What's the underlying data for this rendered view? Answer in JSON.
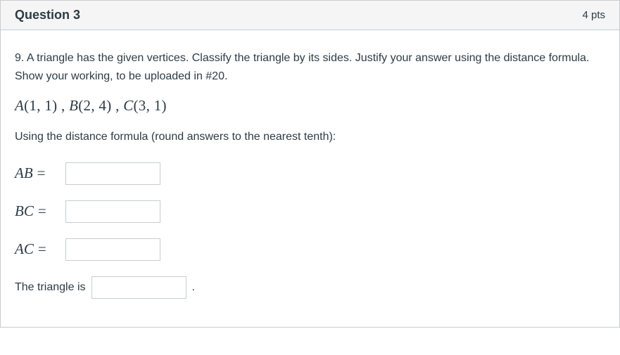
{
  "header": {
    "title": "Question 3",
    "points": "4 pts"
  },
  "body": {
    "prompt_line1": "9. A triangle has the given vertices. Classify the triangle by its sides. Justify your answer using the distance formula.",
    "prompt_line2": "Show your working, to be uploaded in #20.",
    "vertices": {
      "A_label": "A",
      "A_coords": "(1, 1)",
      "B_label": "B",
      "B_coords": "(2, 4)",
      "C_label": "C",
      "C_coords": "(3, 1)"
    },
    "hint": "Using the distance formula (round answers to the nearest tenth):",
    "rows": {
      "ab": {
        "label": "AB",
        "eq": "=",
        "value": ""
      },
      "bc": {
        "label": "BC",
        "eq": "=",
        "value": ""
      },
      "ac": {
        "label": "AC",
        "eq": "=",
        "value": ""
      }
    },
    "final": {
      "prefix": "The triangle is",
      "value": "",
      "suffix": "."
    }
  },
  "colors": {
    "border": "#c7cdd1",
    "header_bg": "#f5f5f5",
    "text": "#2d3b45",
    "body_bg": "#ffffff"
  }
}
